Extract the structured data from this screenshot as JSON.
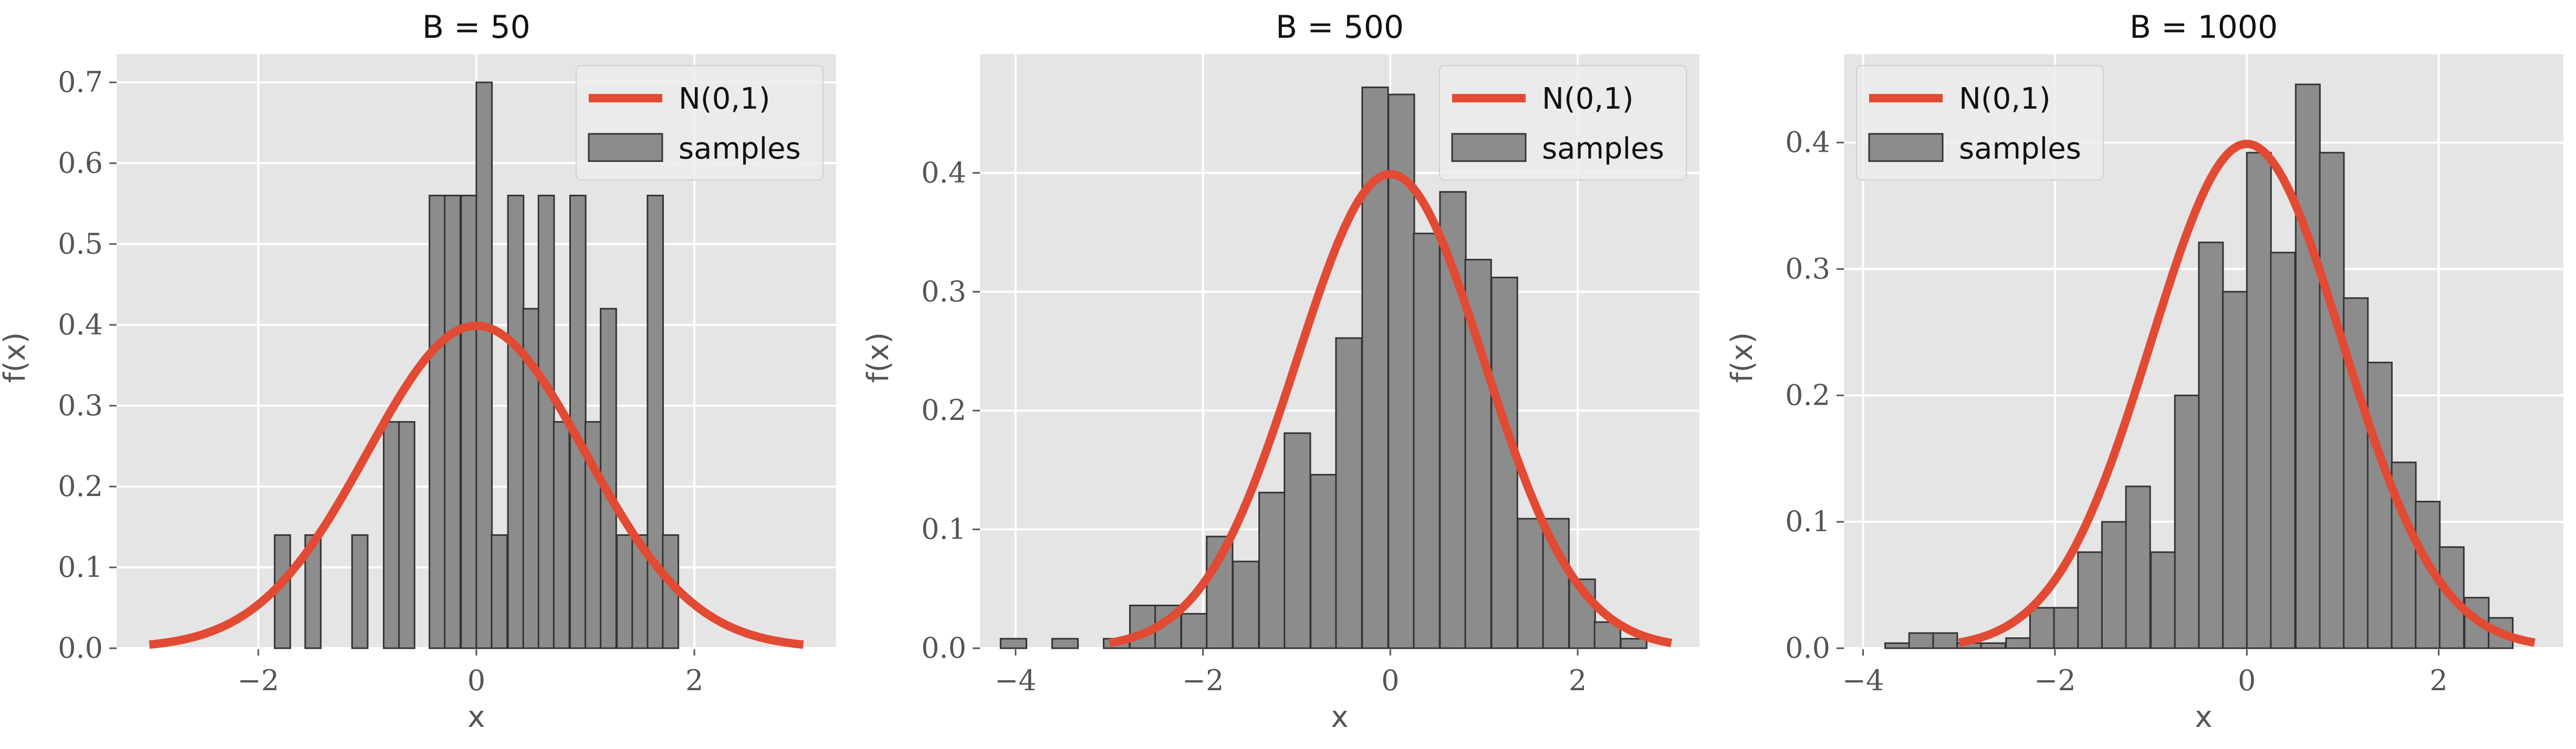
{
  "legend": {
    "line_label": "N(0,1)",
    "bar_label": "samples"
  },
  "colors": {
    "curve": "#e24a33",
    "bars": "#8c8c8c",
    "axes_bg": "#e5e5e5"
  },
  "chart_data": [
    {
      "type": "bar",
      "title": "B = 50",
      "xlabel": "x",
      "ylabel": "f(x)",
      "xlim": [
        -3.3,
        3.3
      ],
      "ylim": [
        0,
        0.735
      ],
      "xticks": [
        -2,
        0,
        2
      ],
      "xtick_labels": [
        "−2",
        "0",
        "2"
      ],
      "yticks": [
        0,
        0.1,
        0.2,
        0.3,
        0.4,
        0.5,
        0.6,
        0.7
      ],
      "ytick_labels": [
        "0.0",
        "0.1",
        "0.2",
        "0.3",
        "0.4",
        "0.5",
        "0.6",
        "0.7"
      ],
      "legend_position": "top-right",
      "bin_width": 0.143,
      "bins": [
        [
          -1.85,
          0.14
        ],
        [
          -1.57,
          0.14
        ],
        [
          -1.14,
          0.14
        ],
        [
          -0.85,
          0.28
        ],
        [
          -0.71,
          0.28
        ],
        [
          -0.43,
          0.56
        ],
        [
          -0.29,
          0.56
        ],
        [
          -0.14,
          0.56
        ],
        [
          0.0,
          0.7
        ],
        [
          0.14,
          0.14
        ],
        [
          0.29,
          0.56
        ],
        [
          0.43,
          0.42
        ],
        [
          0.57,
          0.56
        ],
        [
          0.71,
          0.28
        ],
        [
          0.86,
          0.56
        ],
        [
          1.0,
          0.28
        ],
        [
          1.14,
          0.42
        ],
        [
          1.29,
          0.14
        ],
        [
          1.43,
          0.14
        ],
        [
          1.57,
          0.56
        ],
        [
          1.71,
          0.14
        ]
      ],
      "curve": {
        "label": "N(0,1)",
        "x_range": [
          -3,
          3
        ]
      }
    },
    {
      "type": "bar",
      "title": "B = 500",
      "xlabel": "x",
      "ylabel": "f(x)",
      "xlim": [
        -4.38,
        3.3
      ],
      "ylim": [
        0,
        0.5
      ],
      "xticks": [
        -4,
        -2,
        0,
        2
      ],
      "xtick_labels": [
        "−4",
        "−2",
        "0",
        "2"
      ],
      "yticks": [
        0,
        0.1,
        0.2,
        0.3,
        0.4
      ],
      "ytick_labels": [
        "0.0",
        "0.1",
        "0.2",
        "0.3",
        "0.4"
      ],
      "legend_position": "top-right",
      "bin_width": 0.276,
      "bins": [
        [
          -4.16,
          0.008
        ],
        [
          -3.61,
          0.008
        ],
        [
          -3.06,
          0.008
        ],
        [
          -2.78,
          0.036
        ],
        [
          -2.51,
          0.036
        ],
        [
          -2.23,
          0.029
        ],
        [
          -1.96,
          0.094
        ],
        [
          -1.68,
          0.073
        ],
        [
          -1.4,
          0.131
        ],
        [
          -1.13,
          0.181
        ],
        [
          -0.85,
          0.146
        ],
        [
          -0.58,
          0.261
        ],
        [
          -0.3,
          0.472
        ],
        [
          -0.02,
          0.466
        ],
        [
          0.25,
          0.349
        ],
        [
          0.53,
          0.384
        ],
        [
          0.8,
          0.327
        ],
        [
          1.08,
          0.312
        ],
        [
          1.36,
          0.109
        ],
        [
          1.63,
          0.109
        ],
        [
          1.91,
          0.058
        ],
        [
          2.18,
          0.022
        ],
        [
          2.46,
          0.008
        ]
      ],
      "curve": {
        "label": "N(0,1)",
        "x_range": [
          -3,
          3
        ]
      }
    },
    {
      "type": "bar",
      "title": "B = 1000",
      "xlabel": "x",
      "ylabel": "f(x)",
      "xlim": [
        -4.2,
        3.3
      ],
      "ylim": [
        0,
        0.47
      ],
      "xticks": [
        -4,
        -2,
        0,
        2
      ],
      "xtick_labels": [
        "−4",
        "−2",
        "0",
        "2"
      ],
      "yticks": [
        0,
        0.1,
        0.2,
        0.3,
        0.4
      ],
      "ytick_labels": [
        "0.0",
        "0.1",
        "0.2",
        "0.3",
        "0.4"
      ],
      "legend_position": "top-left",
      "bin_width": 0.252,
      "bins": [
        [
          -3.77,
          0.004
        ],
        [
          -3.52,
          0.012
        ],
        [
          -3.27,
          0.012
        ],
        [
          -3.02,
          0.004
        ],
        [
          -2.77,
          0.004
        ],
        [
          -2.51,
          0.008
        ],
        [
          -2.26,
          0.032
        ],
        [
          -2.01,
          0.032
        ],
        [
          -1.76,
          0.076
        ],
        [
          -1.51,
          0.1
        ],
        [
          -1.26,
          0.128
        ],
        [
          -1.0,
          0.076
        ],
        [
          -0.75,
          0.2
        ],
        [
          -0.5,
          0.321
        ],
        [
          -0.25,
          0.282
        ],
        [
          0.0,
          0.392
        ],
        [
          0.25,
          0.313
        ],
        [
          0.51,
          0.446
        ],
        [
          0.76,
          0.392
        ],
        [
          1.01,
          0.277
        ],
        [
          1.26,
          0.226
        ],
        [
          1.51,
          0.147
        ],
        [
          1.76,
          0.116
        ],
        [
          2.01,
          0.08
        ],
        [
          2.27,
          0.04
        ],
        [
          2.52,
          0.024
        ]
      ],
      "curve": {
        "label": "N(0,1)",
        "x_range": [
          -3,
          3
        ]
      }
    }
  ]
}
